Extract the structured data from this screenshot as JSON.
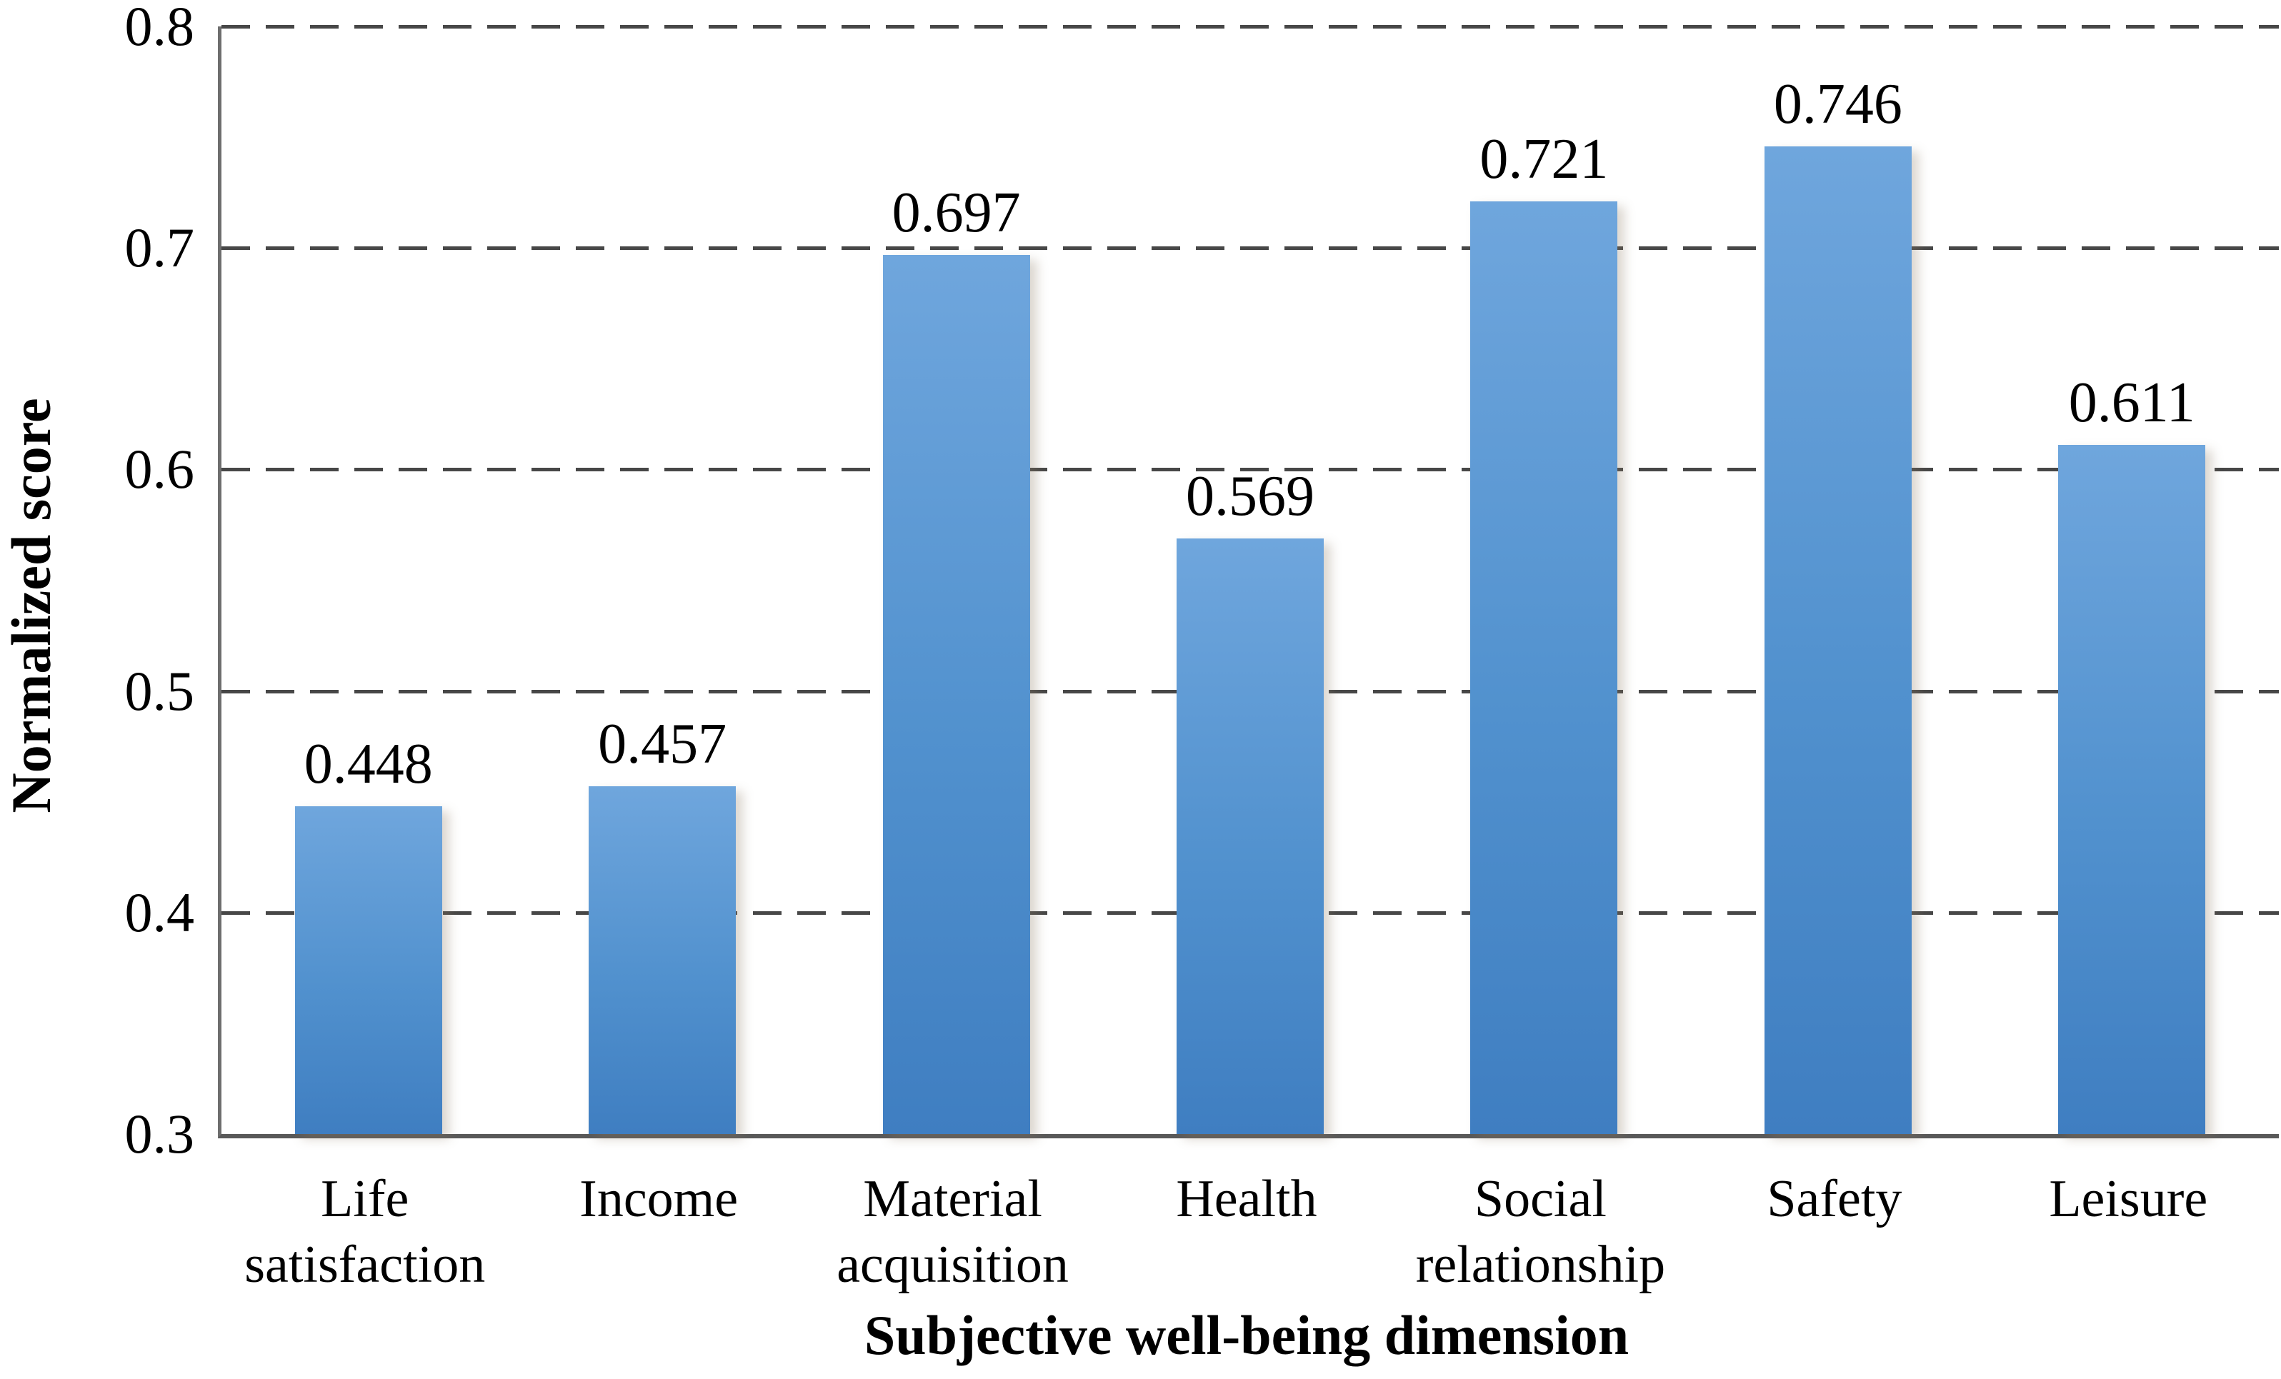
{
  "colors": {
    "background": "#ffffff",
    "bar_top": "#6FA6DD",
    "bar_mid": "#5191CE",
    "bar_bottom": "#3F7EC1",
    "gridline": "#474747",
    "axis_line": "#5a5a5a",
    "text": "#000000"
  },
  "chart_data": {
    "type": "bar",
    "title": "",
    "xlabel": "Subjective well-being dimension",
    "ylabel": "Normalized score",
    "categories": [
      "Life satisfaction",
      "Income",
      "Material acquisition",
      "Health",
      "Social relationship",
      "Safety",
      "Leisure"
    ],
    "values": [
      0.448,
      0.457,
      0.697,
      0.569,
      0.721,
      0.746,
      0.611
    ],
    "data_labels": [
      "0.448",
      "0.457",
      "0.697",
      "0.569",
      "0.721",
      "0.746",
      "0.611"
    ],
    "ylim": [
      0.3,
      0.8
    ],
    "yticks": [
      0.3,
      0.4,
      0.5,
      0.6,
      0.7,
      0.8
    ],
    "ytick_labels": [
      "0.3",
      "0.4",
      "0.5",
      "0.6",
      "0.7",
      "0.8"
    ],
    "grid": "horizontal dashed lines at each y tick, drawn behind bars",
    "legend": "none",
    "bar_color_top": "#6FA6DD",
    "bar_color_bottom": "#3F7EC1"
  }
}
